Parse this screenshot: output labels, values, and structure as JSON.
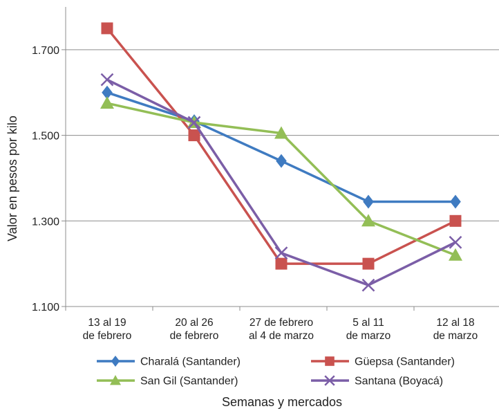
{
  "chart_data": {
    "type": "line",
    "categories": [
      [
        "13 al 19",
        "de febrero"
      ],
      [
        "20 al 26",
        "de febrero"
      ],
      [
        "27 de febrero",
        "al 4 de marzo"
      ],
      [
        "5 al 11",
        "de marzo"
      ],
      [
        "12 al 18",
        "de marzo"
      ]
    ],
    "series": [
      {
        "name": "Charalá (Santander)",
        "color": "#3f7bc1",
        "marker": "diamond",
        "values": [
          1600,
          1533,
          1440,
          1345,
          1345
        ]
      },
      {
        "name": "Güepsa (Santander)",
        "color": "#c9524f",
        "marker": "square",
        "values": [
          1750,
          1500,
          1200,
          1200,
          1300
        ]
      },
      {
        "name": "San Gil (Santander)",
        "color": "#93be56",
        "marker": "triangle",
        "values": [
          1575,
          1530,
          1505,
          1300,
          1220
        ]
      },
      {
        "name": "Santana (Boyacá)",
        "color": "#7b5ea7",
        "marker": "x",
        "values": [
          1630,
          1530,
          1225,
          1150,
          1250
        ]
      }
    ],
    "yticks": [
      1100,
      1300,
      1500,
      1700
    ],
    "ytick_labels": [
      "1.100",
      "1.300",
      "1.500",
      "1.700"
    ],
    "ylim": [
      1100,
      1800
    ],
    "ylabel": "Valor en pesos por kilo",
    "xlabel": "Semanas y mercados",
    "grid": "horizontal",
    "legend_position": "bottom"
  }
}
